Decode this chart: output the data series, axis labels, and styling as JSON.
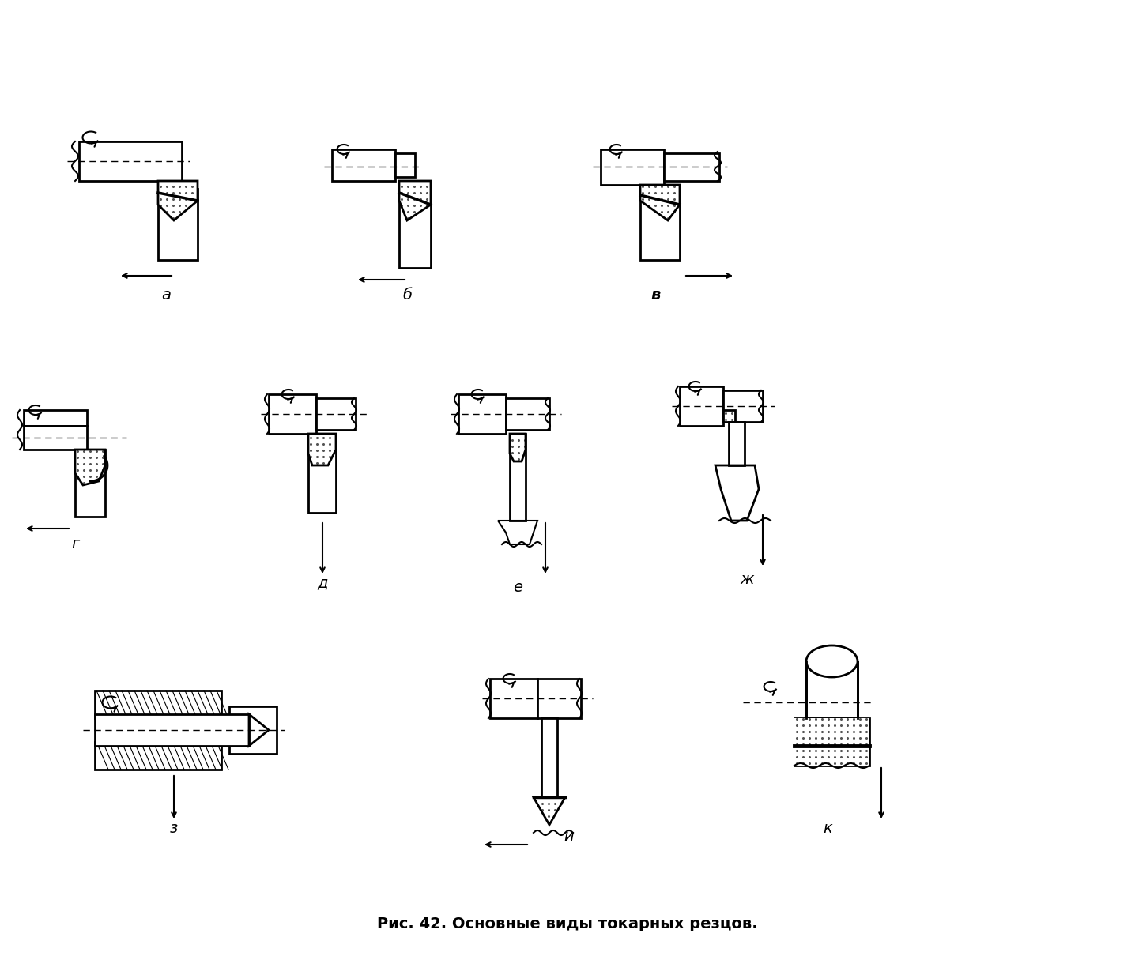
{
  "title": "Рис. 42. Основные виды токарных резцов.",
  "title_fontsize": 14,
  "bg_color": "#ffffff",
  "line_color": "#000000",
  "dot_fill": "#aaaaaa",
  "hatch_fill": "#888888",
  "labels": [
    "а",
    "б",
    "в",
    "г",
    "д",
    "е",
    "ж",
    "з",
    "и",
    "к"
  ],
  "label_fontsize": 14
}
